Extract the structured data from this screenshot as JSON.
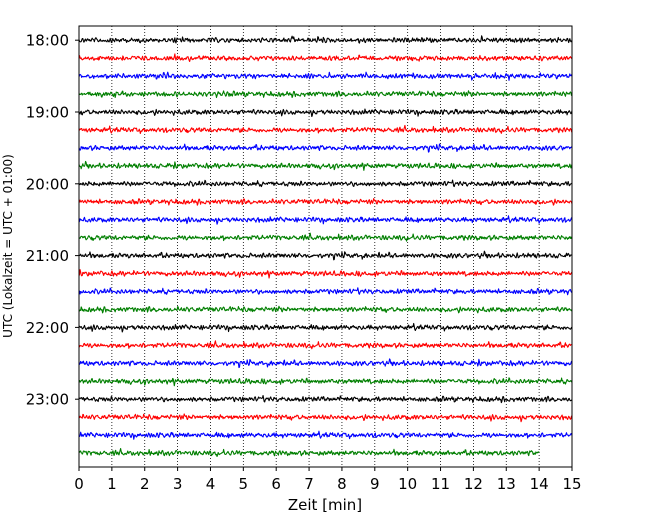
{
  "chart_data": {
    "type": "line",
    "title": "",
    "xlabel": "Zeit  [min]",
    "ylabel": "UTC (Lokalzeit = UTC + 01:00)",
    "xlim": [
      0,
      15
    ],
    "x_ticks": [
      0,
      1,
      2,
      3,
      4,
      5,
      6,
      7,
      8,
      9,
      10,
      11,
      12,
      13,
      14,
      15
    ],
    "grid": "vertical dotted lines at each minute",
    "start_hour_utc": "18:00",
    "rows_per_hour": 4,
    "row_interval_min": 15,
    "row_count": 24,
    "last_row_end_min": 14.0,
    "hour_tick_labels": [
      "18:00",
      "19:00",
      "20:00",
      "21:00",
      "22:00",
      "23:00"
    ],
    "trace_colors": [
      "#000000",
      "#ff0000",
      "#0000ff",
      "#007f00"
    ],
    "series": [
      {
        "row_label": "18:00",
        "color": "#000000"
      },
      {
        "row_label": "18:15",
        "color": "#ff0000"
      },
      {
        "row_label": "18:30",
        "color": "#0000ff"
      },
      {
        "row_label": "18:45",
        "color": "#007f00"
      },
      {
        "row_label": "19:00",
        "color": "#000000"
      },
      {
        "row_label": "19:15",
        "color": "#ff0000"
      },
      {
        "row_label": "19:30",
        "color": "#0000ff"
      },
      {
        "row_label": "19:45",
        "color": "#007f00"
      },
      {
        "row_label": "20:00",
        "color": "#000000"
      },
      {
        "row_label": "20:15",
        "color": "#ff0000"
      },
      {
        "row_label": "20:30",
        "color": "#0000ff"
      },
      {
        "row_label": "20:45",
        "color": "#007f00"
      },
      {
        "row_label": "21:00",
        "color": "#000000"
      },
      {
        "row_label": "21:15",
        "color": "#ff0000"
      },
      {
        "row_label": "21:30",
        "color": "#0000ff"
      },
      {
        "row_label": "21:45",
        "color": "#007f00"
      },
      {
        "row_label": "22:00",
        "color": "#000000"
      },
      {
        "row_label": "22:15",
        "color": "#ff0000"
      },
      {
        "row_label": "22:30",
        "color": "#0000ff"
      },
      {
        "row_label": "22:45",
        "color": "#007f00"
      },
      {
        "row_label": "23:00",
        "color": "#000000"
      },
      {
        "row_label": "23:15",
        "color": "#ff0000"
      },
      {
        "row_label": "23:30",
        "color": "#0000ff"
      },
      {
        "row_label": "23:45",
        "color": "#007f00"
      }
    ]
  }
}
